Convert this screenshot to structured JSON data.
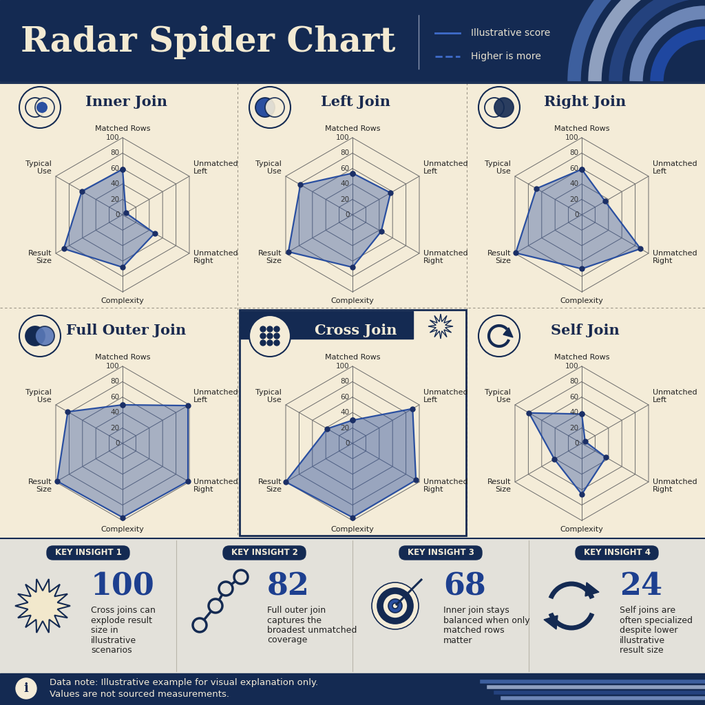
{
  "header": {
    "title": "Radar Spider Chart",
    "legend": [
      {
        "label": "Illustrative score",
        "line_style": "solid"
      },
      {
        "label": "Higher is more",
        "line_style": "dashed"
      }
    ]
  },
  "chart_data": [
    {
      "type": "radar",
      "title": "Inner Join",
      "categories": [
        "Matched Rows",
        "Unmatched Left",
        "Unmatched Right",
        "Complexity",
        "Result Size",
        "Typical Use"
      ],
      "values": [
        59,
        5,
        48,
        68,
        88,
        61
      ],
      "ylim": [
        0,
        100
      ],
      "yticks": [
        0,
        20,
        40,
        60,
        80,
        100
      ],
      "grid": true,
      "color": "#2a4fa0"
    },
    {
      "type": "radar",
      "title": "Left Join",
      "categories": [
        "Matched Rows",
        "Unmatched Left",
        "Unmatched Right",
        "Complexity",
        "Result Size",
        "Typical Use"
      ],
      "values": [
        54,
        57,
        43,
        68,
        96,
        78
      ],
      "ylim": [
        0,
        100
      ],
      "yticks": [
        0,
        20,
        40,
        60,
        80,
        100
      ],
      "grid": true,
      "color": "#2a4fa0"
    },
    {
      "type": "radar",
      "title": "Right Join",
      "categories": [
        "Matched Rows",
        "Unmatched Left",
        "Unmatched Right",
        "Complexity",
        "Result Size",
        "Typical Use"
      ],
      "values": [
        59,
        35,
        88,
        70,
        99,
        68
      ],
      "ylim": [
        0,
        100
      ],
      "yticks": [
        0,
        20,
        40,
        60,
        80,
        100
      ],
      "grid": true,
      "color": "#2a4fa0"
    },
    {
      "type": "radar",
      "title": "Full Outer Join",
      "categories": [
        "Matched Rows",
        "Unmatched Left",
        "Unmatched Right",
        "Complexity",
        "Result Size",
        "Typical Use"
      ],
      "values": [
        50,
        98,
        98,
        96,
        98,
        82
      ],
      "ylim": [
        0,
        100
      ],
      "yticks": [
        0,
        20,
        40,
        60,
        80,
        100
      ],
      "grid": true,
      "color": "#2a4fa0"
    },
    {
      "type": "radar",
      "title": "Cross Join",
      "categories": [
        "Matched Rows",
        "Unmatched Left",
        "Unmatched Right",
        "Complexity",
        "Result Size",
        "Typical Use"
      ],
      "values": [
        30,
        90,
        95,
        96,
        100,
        38
      ],
      "ylim": [
        0,
        100
      ],
      "yticks": [
        0,
        20,
        40,
        60,
        80,
        100
      ],
      "grid": true,
      "color": "#2a4fa0"
    },
    {
      "type": "radar",
      "title": "Self Join",
      "categories": [
        "Matched Rows",
        "Unmatched Left",
        "Unmatched Right",
        "Complexity",
        "Result Size",
        "Typical Use"
      ],
      "values": [
        38,
        5,
        36,
        66,
        41,
        79
      ],
      "ylim": [
        0,
        100
      ],
      "yticks": [
        0,
        20,
        40,
        60,
        80,
        100
      ],
      "grid": true,
      "color": "#2a4fa0"
    }
  ],
  "insights": [
    {
      "label": "KEY INSIGHT 1",
      "value": 100,
      "text": "Cross joins can explode result size in illustrative scenarios"
    },
    {
      "label": "KEY INSIGHT 2",
      "value": 82,
      "text": "Full outer join captures the broadest unmatched coverage"
    },
    {
      "label": "KEY INSIGHT 3",
      "value": 68,
      "text": "Inner join stays balanced when only matched rows matter"
    },
    {
      "label": "KEY INSIGHT 4",
      "value": 24,
      "text": "Self joins are often specialized despite lower illustrative result size"
    }
  ],
  "footer": {
    "icon": "i",
    "note": [
      "Data note: Illustrative example for visual explanation only.",
      "Values are not sourced measurements."
    ]
  }
}
